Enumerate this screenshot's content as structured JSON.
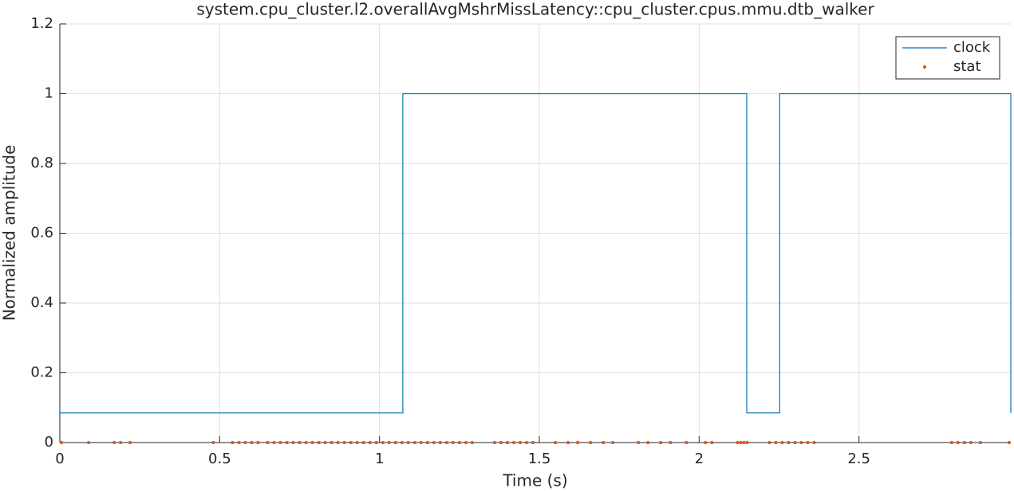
{
  "chart_data": {
    "type": "line",
    "title": "system.cpu_cluster.l2.overallAvgMshrMissLatency::cpu_cluster.cpus.mmu.dtb_walker",
    "xlabel": "Time (s)",
    "ylabel": "Normalized amplitude",
    "xlim": [
      0,
      2.975
    ],
    "ylim": [
      0,
      1.2
    ],
    "xticks": [
      0,
      0.5,
      1,
      1.5,
      2,
      2.5
    ],
    "yticks": [
      0,
      0.2,
      0.4,
      0.6,
      0.8,
      1,
      1.2
    ],
    "grid": true,
    "legend": "northeast",
    "series": [
      {
        "name": "clock",
        "color": "#0072bd",
        "style": "line",
        "x": [
          0,
          1.073,
          1.073,
          2.149,
          2.149,
          2.252,
          2.252,
          2.975,
          2.975
        ],
        "values": [
          0.085,
          0.085,
          1,
          1,
          0.085,
          0.085,
          1,
          1,
          0.085
        ]
      },
      {
        "name": "stat",
        "color": "#d95319",
        "style": "points",
        "x": [
          0.005,
          0.09,
          0.17,
          0.19,
          0.22,
          0.48,
          0.54,
          0.56,
          0.58,
          0.6,
          0.62,
          0.65,
          0.67,
          0.69,
          0.71,
          0.73,
          0.75,
          0.77,
          0.79,
          0.81,
          0.83,
          0.85,
          0.87,
          0.89,
          0.91,
          0.93,
          0.95,
          0.97,
          0.99,
          1.01,
          1.03,
          1.05,
          1.07,
          1.09,
          1.11,
          1.13,
          1.15,
          1.17,
          1.19,
          1.21,
          1.23,
          1.25,
          1.27,
          1.29,
          1.36,
          1.38,
          1.4,
          1.42,
          1.44,
          1.46,
          1.48,
          1.55,
          1.59,
          1.62,
          1.66,
          1.7,
          1.73,
          1.81,
          1.84,
          1.88,
          1.91,
          1.96,
          2.02,
          2.04,
          2.12,
          2.13,
          2.14,
          2.15,
          2.22,
          2.24,
          2.26,
          2.28,
          2.3,
          2.32,
          2.34,
          2.36,
          2.79,
          2.81,
          2.83,
          2.85,
          2.88,
          2.97
        ],
        "values": [
          0,
          0,
          0,
          0,
          0,
          0,
          0,
          0,
          0,
          0,
          0,
          0,
          0,
          0,
          0,
          0,
          0,
          0,
          0,
          0,
          0,
          0,
          0,
          0,
          0,
          0,
          0,
          0,
          0,
          0,
          0,
          0,
          0,
          0,
          0,
          0,
          0,
          0,
          0,
          0,
          0,
          0,
          0,
          0,
          0,
          0,
          0,
          0,
          0,
          0,
          0,
          0,
          0,
          0,
          0,
          0,
          0,
          0,
          0,
          0,
          0,
          0,
          0,
          0,
          0,
          0,
          0,
          0,
          0,
          0,
          0,
          0,
          0,
          0,
          0,
          0,
          0,
          0,
          0,
          0,
          0,
          0
        ]
      }
    ]
  }
}
